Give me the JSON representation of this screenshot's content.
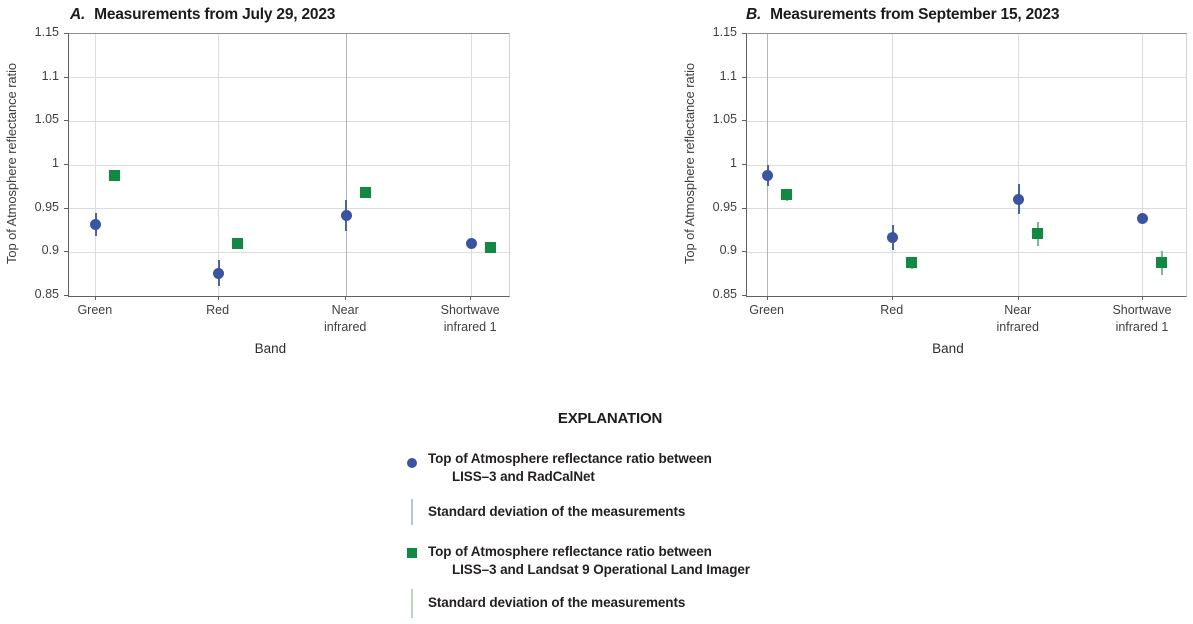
{
  "figure": {
    "explanation_heading": "EXPLANATION",
    "legend": [
      {
        "symbol": "circle",
        "color": "#3a54a4",
        "std_color": "#b9c3e3",
        "label_line1": "Top of Atmosphere reflectance ratio between",
        "label_line2": "LISS–3 and RadCalNet",
        "std_label": "Standard deviation of the measurements"
      },
      {
        "symbol": "square",
        "color": "#108a41",
        "std_color": "#b5d8bd",
        "label_line1": "Top of Atmosphere reflectance ratio between",
        "label_line2": "LISS–3 and Landsat 9 Operational Land Imager",
        "std_label": "Standard deviation of the measurements"
      }
    ]
  },
  "chart_data": [
    {
      "type": "scatter",
      "panel_label": "A.",
      "title": "Measurements from July 29, 2023",
      "xlabel": "Band",
      "ylabel": "Top of Atmosphere reflectance ratio",
      "ylim": [
        0.85,
        1.15
      ],
      "yticks": [
        1.15,
        1.1,
        1.05,
        1,
        0.95,
        0.9,
        0.85
      ],
      "categories": [
        "Green",
        "Red",
        "Near\ninfrared",
        "Shortwave\ninfrared 1"
      ],
      "grid": true,
      "series": [
        {
          "name": "Top of Atmosphere reflectance ratio between LISS–3 and RadCalNet",
          "marker": "circle",
          "color": "#3a54a4",
          "errorbar_color": "#4a62ae",
          "values": [
            0.932,
            0.876,
            0.942,
            0.91
          ],
          "std": [
            0.013,
            0.015,
            0.018,
            0.004
          ]
        },
        {
          "name": "Top of Atmosphere reflectance ratio between LISS–3 and Landsat 9 Operational Land Imager",
          "marker": "square",
          "color": "#108a41",
          "errorbar_color": "#78bd8d",
          "values": [
            0.988,
            0.91,
            0.968,
            0.906
          ],
          "std": [
            0.002,
            0.003,
            0.006,
            0.004
          ]
        }
      ]
    },
    {
      "type": "scatter",
      "panel_label": "B.",
      "title": "Measurements from September 15, 2023",
      "xlabel": "Band",
      "ylabel": "Top of Atmosphere reflectance ratio",
      "ylim": [
        0.85,
        1.15
      ],
      "yticks": [
        1.15,
        1.1,
        1.05,
        1,
        0.95,
        0.9,
        0.85
      ],
      "categories": [
        "Green",
        "Red",
        "Near\ninfrared",
        "Shortwave\ninfrared 1"
      ],
      "grid": true,
      "series": [
        {
          "name": "Top of Atmosphere reflectance ratio between LISS–3 and RadCalNet",
          "marker": "circle",
          "color": "#3a54a4",
          "errorbar_color": "#4a62ae",
          "values": [
            0.988,
            0.917,
            0.961,
            0.939
          ],
          "std": [
            0.012,
            0.014,
            0.017,
            0.003
          ]
        },
        {
          "name": "Top of Atmosphere reflectance ratio between LISS–3 and Landsat 9 Operational Land Imager",
          "marker": "square",
          "color": "#108a41",
          "errorbar_color": "#78bd8d",
          "values": [
            0.966,
            0.888,
            0.921,
            0.888
          ],
          "std": [
            0.007,
            0.007,
            0.014,
            0.014
          ]
        }
      ]
    }
  ]
}
